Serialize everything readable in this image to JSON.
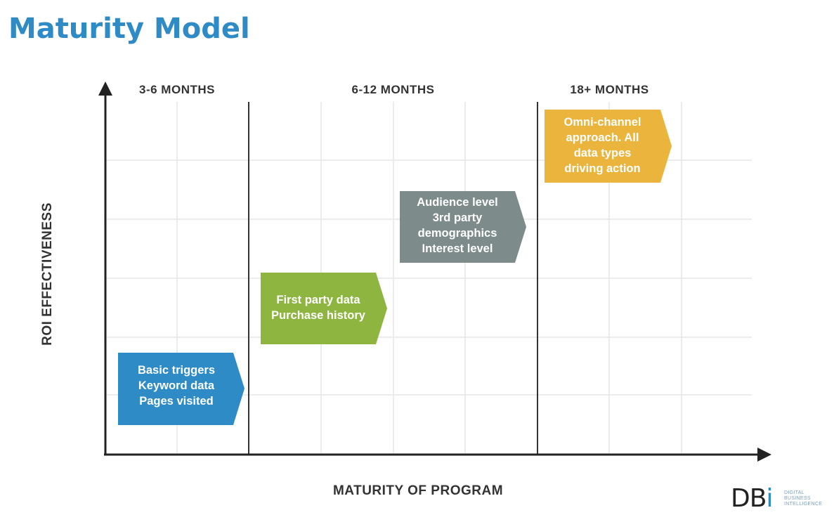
{
  "title": "Maturity Model",
  "x_axis_label": "MATURITY OF PROGRAM",
  "y_axis_label": "ROI EFFECTIVENESS",
  "phases": [
    {
      "label": "3-6 MONTHS"
    },
    {
      "label": "6-12 MONTHS"
    },
    {
      "label": "18+ MONTHS"
    }
  ],
  "stages": [
    {
      "lines": [
        "Basic triggers",
        "Keyword data",
        "Pages visited"
      ],
      "color": "#2e8bc6"
    },
    {
      "lines": [
        "First party data",
        "Purchase history"
      ],
      "color": "#8db53f"
    },
    {
      "lines": [
        "Audience level",
        "3rd party",
        "demographics",
        "Interest level"
      ],
      "color": "#7d8b8a"
    },
    {
      "lines": [
        "Omni-channel",
        "approach. All",
        "data types",
        "driving action"
      ],
      "color": "#ebb43c"
    }
  ],
  "logo": {
    "mark_left": "DB",
    "mark_right": "i",
    "subtitle_lines": [
      "DIGITAL",
      "BUSINESS",
      "INTELLIGENCE"
    ]
  }
}
